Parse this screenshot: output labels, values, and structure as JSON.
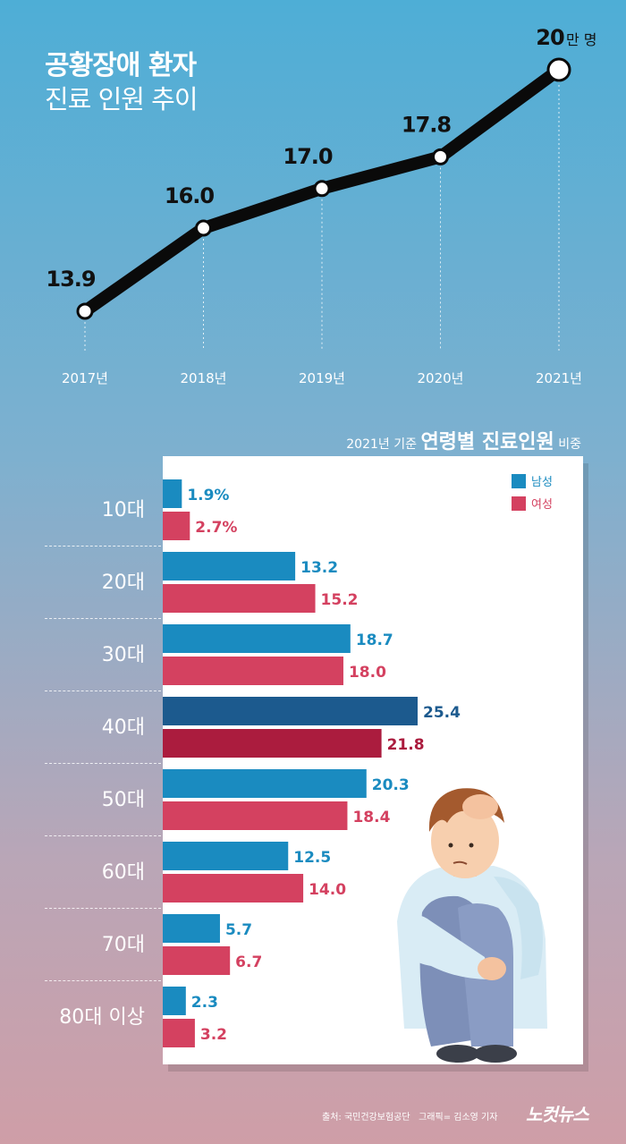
{
  "header": {
    "title_line1": "공황장애 환자",
    "title_line2": "진료 인원 추이",
    "unit": "만 명"
  },
  "bar_header": {
    "prefix": "2021년 기준",
    "emphasis": "연령별 진료인원",
    "suffix": "비중"
  },
  "legend": {
    "male": "남성",
    "female": "여성"
  },
  "footer": {
    "source": "출처: 국민건강보험공단",
    "credit": "그래픽= 김소영 기자",
    "logo": "노컷뉴스"
  },
  "colors": {
    "line": "#0a0a0a",
    "male": "#1a8bc0",
    "female": "#d44160",
    "male_highlight": "#1c5a8e",
    "female_highlight": "#ab1c3e",
    "male_label": "#1a8bc0",
    "female_label": "#d44160"
  },
  "chart_data": [
    {
      "type": "line",
      "title": "공황장애 환자 진료 인원 추이",
      "x": [
        "2017년",
        "2018년",
        "2019년",
        "2020년",
        "2021년"
      ],
      "series": [
        {
          "values": [
            13.9,
            16.0,
            17.0,
            17.8,
            20
          ],
          "labels": [
            "13.9",
            "16.0",
            "17.0",
            "17.8",
            "20"
          ]
        }
      ],
      "unit": "만 명",
      "grid": false
    },
    {
      "type": "bar",
      "orientation": "horizontal",
      "title": "2021년 기준 연령별 진료인원 비중",
      "categories": [
        "10대",
        "20대",
        "30대",
        "40대",
        "50대",
        "60대",
        "70대",
        "80대 이상"
      ],
      "series": [
        {
          "name": "남성",
          "values": [
            1.9,
            13.2,
            18.7,
            25.4,
            20.3,
            12.5,
            5.7,
            2.3
          ],
          "labels": [
            "1.9%",
            "13.2",
            "18.7",
            "25.4",
            "20.3",
            "12.5",
            "5.7",
            "2.3"
          ]
        },
        {
          "name": "여성",
          "values": [
            2.7,
            15.2,
            18.0,
            21.8,
            18.4,
            14.0,
            6.7,
            3.2
          ],
          "labels": [
            "2.7%",
            "15.2",
            "18.0",
            "21.8",
            "18.4",
            "14.0",
            "6.7",
            "3.2"
          ]
        }
      ],
      "highlight_category": "40대",
      "legend_position": "top-right"
    }
  ]
}
